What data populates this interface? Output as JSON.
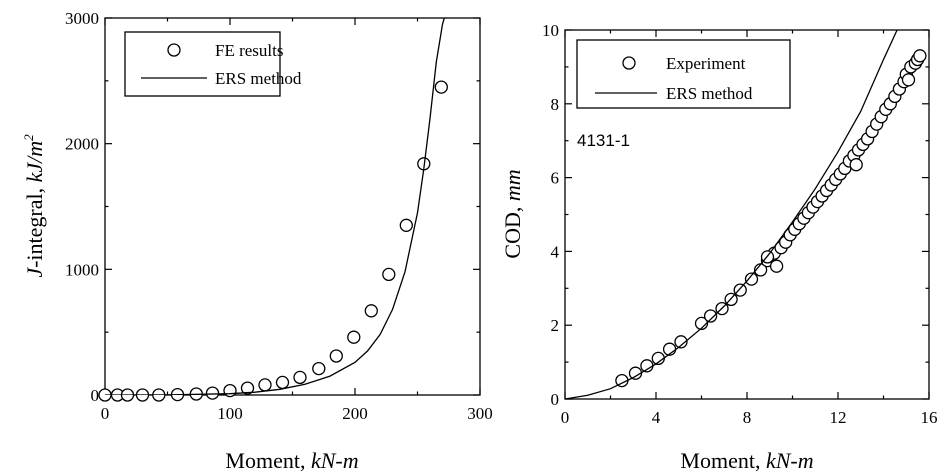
{
  "chart_data": [
    {
      "type": "scatter",
      "xlabel": "Moment, ",
      "xlabel_unit": "kN-m",
      "ylabel_prefix": "J",
      "ylabel_mid": "-integral, ",
      "ylabel_unit": "kJ/m",
      "ylabel_exp": "2",
      "xlim": [
        0,
        300
      ],
      "ylim": [
        0,
        3000
      ],
      "xticks": [
        0,
        100,
        200,
        300
      ],
      "yticks": [
        0,
        1000,
        2000,
        3000
      ],
      "legend_position": "top-left",
      "series": [
        {
          "name": "FE results",
          "marker": "open-circle",
          "x": [
            0,
            10,
            18,
            30,
            43,
            58,
            73,
            86,
            100,
            114,
            128,
            142,
            156,
            171,
            185,
            199,
            213,
            227,
            241,
            255,
            269
          ],
          "y": [
            0,
            0,
            0,
            0,
            0,
            3,
            8,
            15,
            35,
            55,
            80,
            100,
            140,
            210,
            310,
            460,
            670,
            960,
            1350,
            1840,
            2450
          ]
        },
        {
          "name": "ERS method",
          "marker": "line",
          "x": [
            0,
            50,
            100,
            120,
            140,
            160,
            180,
            200,
            210,
            220,
            230,
            240,
            250,
            255,
            260,
            265,
            270,
            272
          ],
          "y": [
            0,
            1,
            10,
            22,
            45,
            85,
            150,
            260,
            350,
            480,
            680,
            980,
            1450,
            1800,
            2200,
            2650,
            2950,
            3020
          ]
        }
      ]
    },
    {
      "type": "scatter",
      "xlabel": "Moment, ",
      "xlabel_unit": "kN-m",
      "ylabel_prefix": "COD, ",
      "ylabel_unit": "mm",
      "xlim": [
        0,
        16
      ],
      "ylim": [
        0,
        10
      ],
      "xticks": [
        0,
        4,
        8,
        12,
        16
      ],
      "yticks": [
        0,
        2,
        4,
        6,
        8,
        10
      ],
      "legend_position": "top-left",
      "annotation": "4131-1",
      "series": [
        {
          "name": "Experiment",
          "marker": "open-circle",
          "x": [
            2.5,
            3.1,
            3.6,
            4.1,
            4.6,
            5.1,
            6.0,
            6.4,
            6.9,
            7.3,
            7.7,
            8.2,
            8.6,
            8.9,
            9.2,
            9.5,
            9.7,
            9.9,
            10.1,
            10.3,
            10.5,
            10.7,
            10.9,
            11.1,
            11.3,
            11.5,
            11.7,
            11.9,
            12.1,
            12.3,
            12.5,
            12.7,
            12.9,
            13.1,
            13.3,
            13.5,
            13.7,
            13.9,
            14.1,
            14.3,
            14.5,
            14.7,
            14.9,
            15.0,
            15.2,
            15.4,
            15.5,
            15.6,
            8.9,
            9.3,
            12.8,
            15.1
          ],
          "y": [
            0.5,
            0.7,
            0.9,
            1.1,
            1.35,
            1.55,
            2.05,
            2.25,
            2.45,
            2.7,
            2.95,
            3.25,
            3.5,
            3.75,
            3.95,
            4.1,
            4.25,
            4.45,
            4.6,
            4.75,
            4.9,
            5.05,
            5.2,
            5.35,
            5.5,
            5.65,
            5.8,
            5.95,
            6.1,
            6.25,
            6.45,
            6.6,
            6.75,
            6.9,
            7.05,
            7.25,
            7.45,
            7.65,
            7.85,
            8.0,
            8.2,
            8.4,
            8.6,
            8.8,
            9.0,
            9.1,
            9.2,
            9.3,
            3.85,
            3.6,
            6.35,
            8.65
          ]
        },
        {
          "name": "ERS method",
          "marker": "line",
          "x": [
            0,
            1,
            2,
            3,
            4,
            5,
            6,
            7,
            8,
            9,
            10,
            11,
            12,
            13,
            14,
            14.6
          ],
          "y": [
            0,
            0.1,
            0.28,
            0.58,
            0.95,
            1.4,
            1.92,
            2.52,
            3.2,
            3.95,
            4.8,
            5.7,
            6.7,
            7.8,
            9.2,
            10.0
          ]
        }
      ]
    }
  ]
}
